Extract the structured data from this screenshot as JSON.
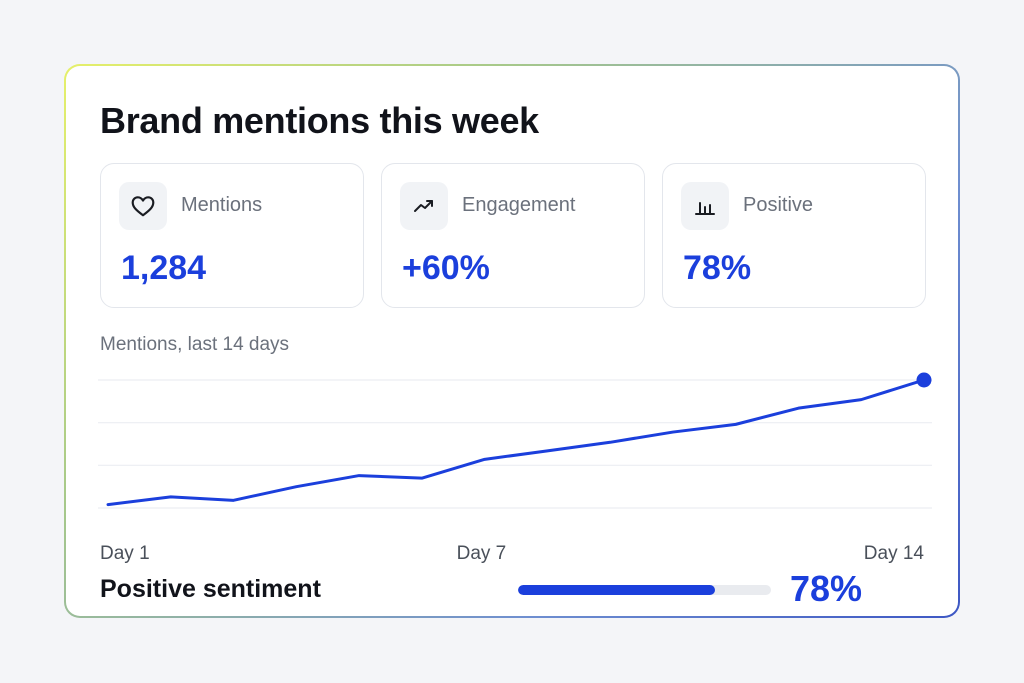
{
  "title": "Brand mentions this week",
  "stats": [
    {
      "label": "Mentions",
      "value": "1,284",
      "icon": "heart-icon"
    },
    {
      "label": "Engagement",
      "value": "+60%",
      "icon": "trending-up-icon"
    },
    {
      "label": "Positive",
      "value": "78%",
      "icon": "bar-chart-icon"
    }
  ],
  "chart_label": "Mentions, last 14 days",
  "chart_data": {
    "type": "line",
    "x": [
      1,
      2,
      3,
      4,
      5,
      6,
      7,
      8,
      9,
      10,
      11,
      12,
      13,
      14
    ],
    "tick_labels": [
      "Day 1",
      "Day 7",
      "Day 14"
    ],
    "tick_positions": [
      1,
      7,
      14
    ],
    "series": [
      {
        "values": [
          4,
          13,
          9,
          25,
          38,
          35,
          57,
          67,
          77,
          89,
          98,
          117,
          127,
          150
        ],
        "color": "#1b3fdc"
      }
    ],
    "ylim": [
      0,
      150
    ],
    "grid": true,
    "highlight_last_point": true
  },
  "sentiment": {
    "label": "Positive sentiment",
    "value": "78%",
    "fraction": 0.78
  },
  "colors": {
    "accent": "#1b3fdc",
    "text": "#11131a",
    "muted": "#6b717c"
  }
}
